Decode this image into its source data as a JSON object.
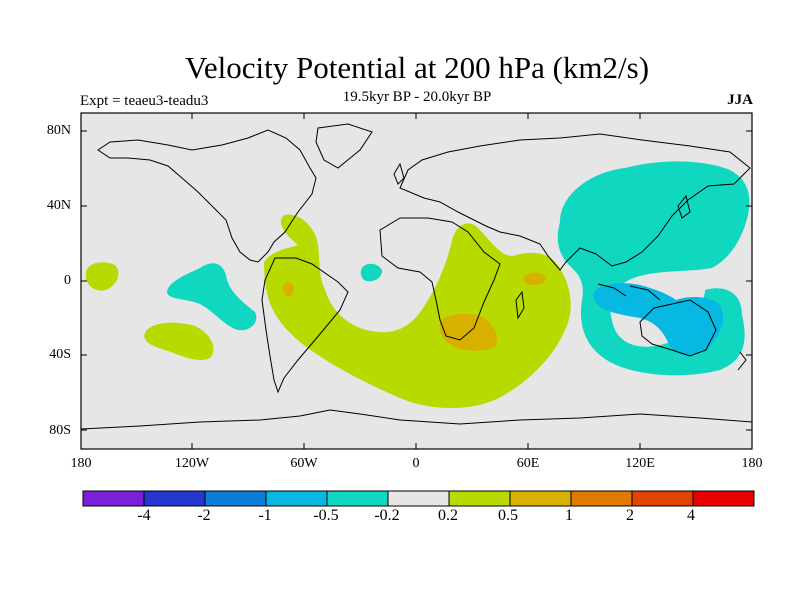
{
  "title": "Velocity Potential at 200 hPa (km2/s)",
  "subtitle": "19.5kyr BP - 20.0kyr BP",
  "experiment": "Expt = teaeu3-teadu3",
  "season": "JJA",
  "map": {
    "projection": "cylindrical equidistant",
    "lon_range": [
      -180,
      180
    ],
    "lat_range": [
      -90,
      90
    ],
    "background_color": "#e6e6e6",
    "y_ticks": [
      "80N",
      "40N",
      "0",
      "40S",
      "80S"
    ],
    "x_ticks": [
      "180",
      "120W",
      "60W",
      "0",
      "60E",
      "120E",
      "180"
    ]
  },
  "colorbar": {
    "colors": [
      "#7b1fd8",
      "#2438d0",
      "#0a7ed8",
      "#07b8e2",
      "#10d8c0",
      "#e6e6e6",
      "#b8da00",
      "#d8b000",
      "#e07a00",
      "#e04400",
      "#e80000"
    ],
    "labels": [
      "-4",
      "-2",
      "-1",
      "-0.5",
      "-0.2",
      "0.2",
      "0.5",
      "1",
      "2",
      "4"
    ]
  }
}
